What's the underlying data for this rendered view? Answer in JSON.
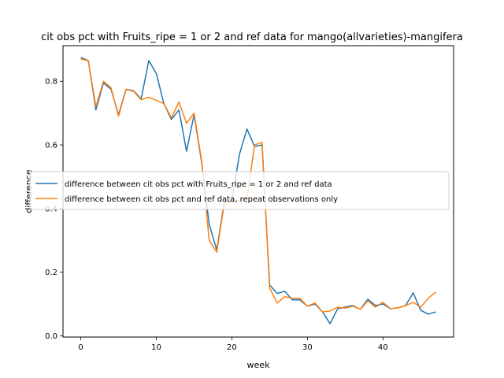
{
  "chart_data": {
    "type": "line",
    "title": "cit obs pct with Fruits_ripe = 1 or 2 and ref data for mango(allvarieties)-mangifera",
    "xlabel": "week",
    "ylabel": "difference",
    "xlim": [
      -2.35,
      49.35
    ],
    "ylim": [
      -0.004,
      0.912
    ],
    "xticks": [
      0,
      10,
      20,
      30,
      40
    ],
    "yticks": [
      0.0,
      0.2,
      0.4,
      0.6,
      0.8
    ],
    "ytick_labels": [
      "0.0",
      "0.2",
      "0.4",
      "0.6",
      "0.8"
    ],
    "grid": false,
    "legend_position": "center-right",
    "x": [
      0,
      1,
      2,
      3,
      4,
      5,
      6,
      7,
      8,
      9,
      10,
      11,
      12,
      13,
      14,
      15,
      16,
      17,
      18,
      19,
      20,
      21,
      22,
      23,
      24,
      25,
      26,
      27,
      28,
      29,
      30,
      31,
      32,
      33,
      34,
      35,
      36,
      37,
      38,
      39,
      40,
      41,
      42,
      43,
      44,
      45,
      46,
      47
    ],
    "series": [
      {
        "name": "difference between cit obs pct with Fruits_ripe = 1 or 2 and ref data",
        "color": "#1f77b4",
        "values": [
          0.875,
          0.865,
          0.71,
          0.795,
          0.775,
          0.695,
          0.775,
          0.77,
          0.745,
          0.865,
          0.825,
          0.73,
          0.68,
          0.71,
          0.58,
          0.695,
          0.545,
          0.35,
          0.27,
          0.42,
          0.425,
          0.57,
          0.65,
          0.595,
          0.6,
          0.16,
          0.133,
          0.14,
          0.113,
          0.113,
          0.093,
          0.1,
          0.075,
          0.038,
          0.085,
          0.09,
          0.095,
          0.083,
          0.115,
          0.095,
          0.1,
          0.085,
          0.088,
          0.095,
          0.135,
          0.08,
          0.068,
          0.075
        ]
      },
      {
        "name": "difference between cit obs pct and ref data, repeat observations only",
        "color": "#ff7f0e",
        "values": [
          0.87,
          0.865,
          0.72,
          0.8,
          0.78,
          0.69,
          0.775,
          0.768,
          0.742,
          0.75,
          0.74,
          0.73,
          0.685,
          0.735,
          0.668,
          0.7,
          0.55,
          0.3,
          0.263,
          0.415,
          0.42,
          0.425,
          0.43,
          0.6,
          0.608,
          0.15,
          0.103,
          0.123,
          0.118,
          0.118,
          0.093,
          0.103,
          0.075,
          0.078,
          0.09,
          0.087,
          0.093,
          0.083,
          0.11,
          0.09,
          0.105,
          0.085,
          0.088,
          0.095,
          0.105,
          0.09,
          0.118,
          0.138
        ]
      }
    ]
  }
}
